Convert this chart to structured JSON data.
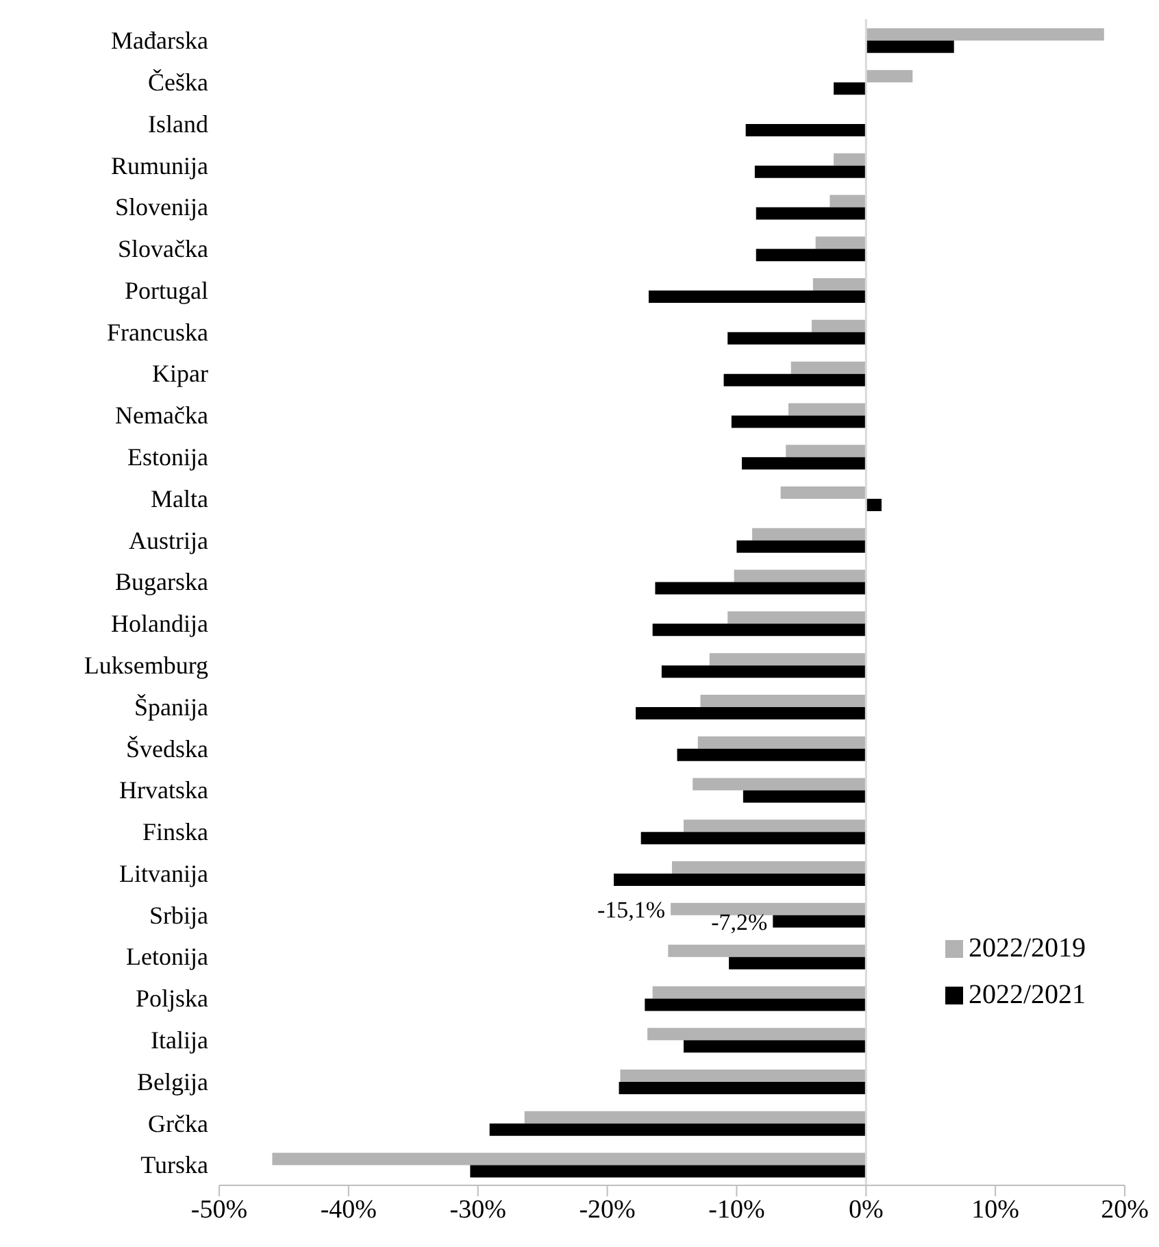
{
  "chart_data": {
    "type": "bar",
    "orientation": "horizontal",
    "categories": [
      "Mađarska",
      "Češka",
      "Island",
      "Rumunija",
      "Slovenija",
      "Slovačka",
      "Portugal",
      "Francuska",
      "Kipar",
      "Nemačka",
      "Estonija",
      "Malta",
      "Austrija",
      "Bugarska",
      "Holandija",
      "Luksemburg",
      "Španija",
      "Švedska",
      "Hrvatska",
      "Finska",
      "Litvanija",
      "Srbija",
      "Letonija",
      "Poljska",
      "Italija",
      "Belgija",
      "Grčka",
      "Turska"
    ],
    "series": [
      {
        "name": "2022/2019",
        "color": "#b3b3b3",
        "values": [
          18.4,
          3.6,
          null,
          -2.5,
          -2.8,
          -3.9,
          -4.1,
          -4.2,
          -5.8,
          -6.0,
          -6.2,
          -6.6,
          -8.8,
          -10.2,
          -10.7,
          -12.1,
          -12.8,
          -13.0,
          -13.4,
          -14.1,
          -15.0,
          -15.1,
          -15.3,
          -16.5,
          -16.9,
          -19.0,
          -26.4,
          -45.9
        ],
        "value_labels": [
          null,
          null,
          null,
          null,
          null,
          null,
          null,
          null,
          null,
          null,
          null,
          null,
          null,
          null,
          null,
          null,
          null,
          null,
          null,
          null,
          null,
          "-15,1%",
          null,
          null,
          null,
          null,
          null,
          null
        ]
      },
      {
        "name": "2022/2021",
        "color": "#000000",
        "values": [
          6.8,
          -2.5,
          -9.3,
          -8.6,
          -8.5,
          -8.5,
          -16.8,
          -10.7,
          -11.0,
          -10.4,
          -9.6,
          1.2,
          -10.0,
          -16.3,
          -16.5,
          -15.8,
          -17.8,
          -14.6,
          -9.5,
          -17.4,
          -19.5,
          -7.2,
          -10.6,
          -17.1,
          -14.1,
          -19.1,
          -29.1,
          -30.6
        ],
        "value_labels": [
          null,
          null,
          null,
          null,
          null,
          null,
          null,
          null,
          null,
          null,
          null,
          null,
          null,
          null,
          null,
          null,
          null,
          null,
          null,
          null,
          null,
          "-7,2%",
          null,
          null,
          null,
          null,
          null,
          null
        ]
      }
    ],
    "xlim": [
      -50,
      20
    ],
    "xticks": [
      {
        "value": -50,
        "label": "-50%"
      },
      {
        "value": -40,
        "label": "-40%"
      },
      {
        "value": -30,
        "label": "-30%"
      },
      {
        "value": -20,
        "label": "-20%"
      },
      {
        "value": -10,
        "label": "-10%"
      },
      {
        "value": 0,
        "label": "0%"
      },
      {
        "value": 10,
        "label": "10%"
      },
      {
        "value": 20,
        "label": "20%"
      }
    ],
    "legend": "right",
    "ref_lines": [
      {
        "axis": "x",
        "value": 0,
        "color": "#d9d9d9"
      }
    ]
  }
}
